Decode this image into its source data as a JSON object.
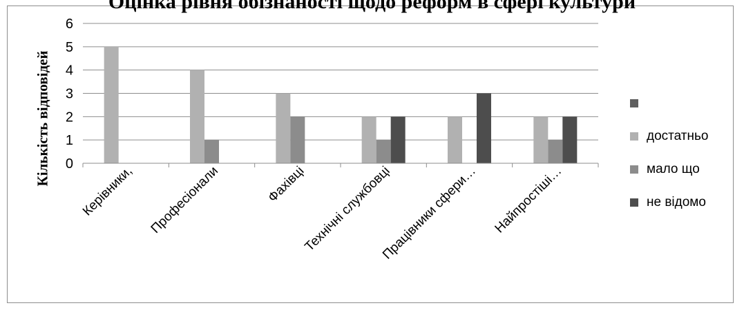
{
  "title_fragment": "Оцінка рівня обізнаності щодо реформ в сфері культури",
  "chart_data": {
    "type": "bar",
    "title": "",
    "xlabel": "",
    "ylabel": "Кількість відповідей",
    "ylim": [
      0,
      6
    ],
    "yticks": [
      0,
      1,
      2,
      3,
      4,
      5,
      6
    ],
    "grid": true,
    "legend_position": "right",
    "categories": [
      "Керівники,",
      "Професіонали",
      "Фахівці",
      "Технічні службовці",
      "Працівники сфери…",
      "Найпростіші…"
    ],
    "series": [
      {
        "name": "достатньо",
        "color": "#b1b1b1",
        "values": [
          5,
          4,
          3,
          2,
          2,
          2
        ]
      },
      {
        "name": "мало що",
        "color": "#8c8c8c",
        "values": [
          0,
          1,
          2,
          1,
          0,
          1
        ]
      },
      {
        "name": "не відомо",
        "color": "#4d4d4d",
        "values": [
          0,
          0,
          0,
          2,
          3,
          2
        ]
      }
    ],
    "legend": [
      {
        "label": "",
        "color": "#5f5f5f"
      },
      {
        "label": "достатньо",
        "color": "#b1b1b1"
      },
      {
        "label": "мало що",
        "color": "#8c8c8c"
      },
      {
        "label": "не відомо",
        "color": "#4d4d4d"
      }
    ]
  }
}
